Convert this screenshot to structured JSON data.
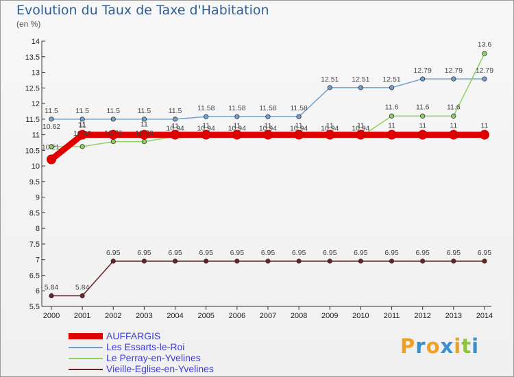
{
  "chart_data": {
    "type": "line",
    "title": "Evolution du Taux de Taxe d'Habitation",
    "subtitle": "(en %)",
    "x": [
      "2000",
      "2001",
      "2002",
      "2003",
      "2004",
      "2005",
      "2006",
      "2007",
      "2008",
      "2009",
      "2010",
      "2011",
      "2012",
      "2013",
      "2014"
    ],
    "ylim": [
      5.5,
      14
    ],
    "yticks": [
      "5.5",
      "6",
      "6.5",
      "7",
      "7.5",
      "8",
      "8.5",
      "9",
      "9.5",
      "10",
      "10.5",
      "11",
      "11.5",
      "12",
      "12.5",
      "13",
      "13.5",
      "14"
    ],
    "series": [
      {
        "name": "AUFFARGIS",
        "color": "#e00000",
        "values": [
          10.21,
          11,
          11,
          11,
          11,
          11,
          11,
          11,
          11,
          11,
          11,
          11,
          11,
          11,
          11
        ],
        "labels": [
          "",
          "11",
          "",
          "",
          "",
          "",
          "",
          "",
          "",
          "",
          "",
          "11",
          "11",
          "11",
          "11"
        ]
      },
      {
        "name": "Les Essarts-le-Roi",
        "color": "#6fa0d0",
        "values": [
          11.5,
          11.5,
          11.5,
          11.5,
          11.5,
          11.58,
          11.58,
          11.58,
          11.58,
          12.51,
          12.51,
          12.51,
          12.79,
          12.79,
          12.79
        ],
        "labels": [
          "11.5",
          "11.5",
          "11.5",
          "11.5",
          "11.5",
          "11.58",
          "11.58",
          "11.58",
          "11.58",
          "12.51",
          "12.51",
          "12.51",
          "12.79",
          "12.79",
          "12.79"
        ]
      },
      {
        "name": "Le Perray-en-Yvelines",
        "color": "#8fd060",
        "values": [
          10.62,
          10.62,
          10.78,
          10.78,
          10.94,
          10.94,
          10.94,
          10.94,
          10.94,
          10.94,
          10.94,
          11.6,
          11.6,
          11.6,
          13.6
        ],
        "labels": [
          "10.62",
          "10.62",
          "10.78",
          "10.78",
          "10.94",
          "10.94",
          "10.94",
          "10.94",
          "10.94",
          "10.94",
          "10.94",
          "11.6",
          "11.6",
          "11.6",
          "13.6"
        ]
      },
      {
        "name": "Vieille-Eglise-en-Yvelines",
        "color": "#6a2222",
        "values": [
          5.84,
          5.84,
          6.95,
          6.95,
          6.95,
          6.95,
          6.95,
          6.95,
          6.95,
          6.95,
          6.95,
          6.95,
          6.95,
          6.95,
          6.95
        ],
        "labels": [
          "5.84",
          "5.84",
          "6.95",
          "6.95",
          "6.95",
          "6.95",
          "6.95",
          "6.95",
          "6.95",
          "6.95",
          "6.95",
          "6.95",
          "6.95",
          "6.95",
          "6.95"
        ]
      }
    ],
    "extra_labels": [
      "10.21",
      "11",
      "11",
      "11",
      "11",
      "11",
      "11",
      "11",
      "11",
      "11"
    ],
    "legend": "bottom-left",
    "grid": false
  },
  "brand": {
    "text": "Proxiti",
    "letters": [
      "P",
      "r",
      "o",
      "x",
      "i",
      "t",
      "i"
    ],
    "colors": [
      "#f0a020",
      "#3a8fd0",
      "#f0a020",
      "#3a8fd0",
      "#f0a020",
      "#8cc63f",
      "#3a8fd0"
    ]
  }
}
